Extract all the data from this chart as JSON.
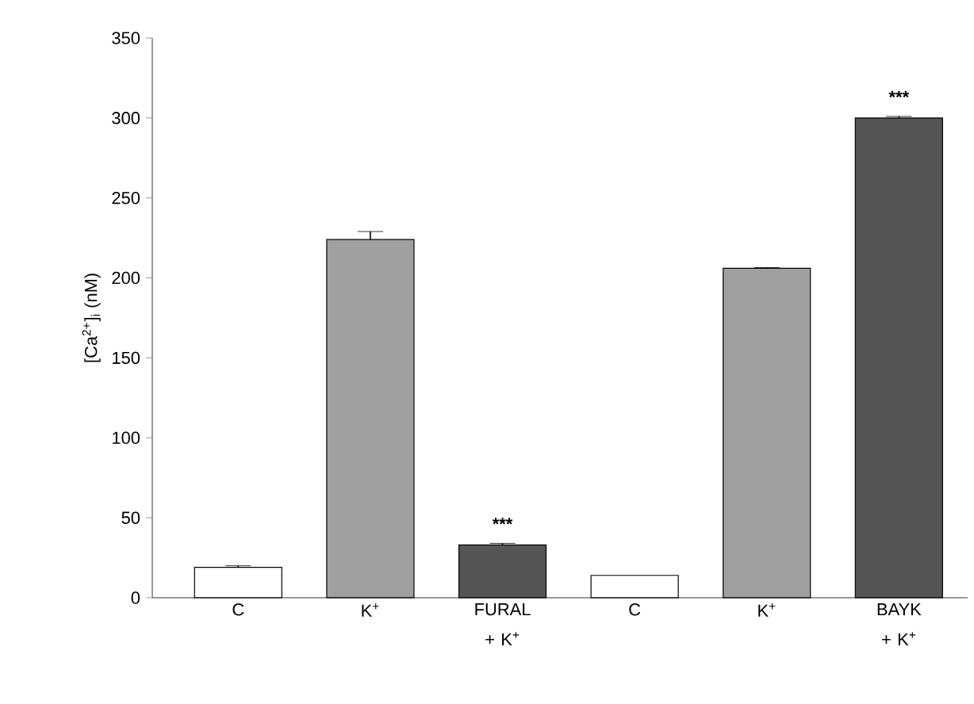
{
  "chart_data": {
    "type": "bar",
    "ylabel": "[Ca$^{2+}$]$_{i}$ (nM)",
    "categories": [
      "C",
      "K$^{+}$",
      "FURAL + K$^{+}$",
      "C",
      "K$^{+}$",
      "BAYK + K$^{+}$"
    ],
    "values": [
      19,
      224,
      33,
      14,
      206,
      300
    ],
    "errors": [
      1,
      5,
      1,
      null,
      0.5,
      1
    ],
    "colors": [
      "#ffffff",
      "#a0a0a0",
      "#555555",
      "#ffffff",
      "#a0a0a0",
      "#555555"
    ],
    "ylim": [
      0,
      350
    ],
    "yticks": [
      0,
      50,
      100,
      150,
      200,
      250,
      300,
      350
    ],
    "annotations": [
      {
        "text": "***",
        "x": "FURAL + K$^{+}$",
        "y": 33
      },
      {
        "text": "***",
        "x": "BAYK + K$^{+}$",
        "y": 300
      }
    ]
  }
}
